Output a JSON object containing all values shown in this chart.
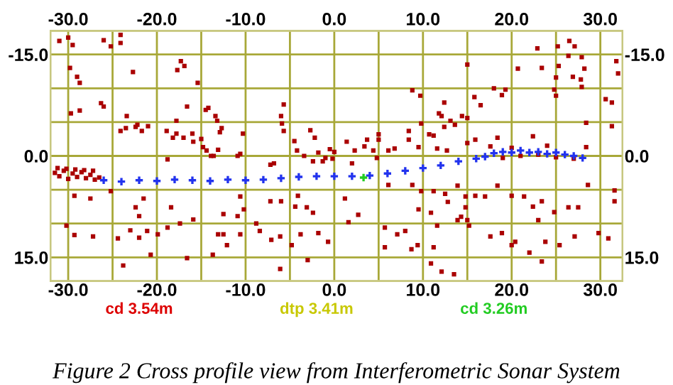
{
  "chart_data": {
    "type": "scatter",
    "xlim": [
      -32,
      32.5
    ],
    "ylim": [
      18.5,
      -18.5
    ],
    "x2lim": [
      -32,
      32.5
    ],
    "y2lim": [
      18.5,
      -18.5
    ],
    "xticks": [
      {
        "value": -30,
        "label": "-30.0"
      },
      {
        "value": -25,
        "label": null
      },
      {
        "value": -20,
        "label": "-20.0"
      },
      {
        "value": -15,
        "label": null
      },
      {
        "value": -10,
        "label": "-10.0"
      },
      {
        "value": -5,
        "label": null
      },
      {
        "value": 0,
        "label": "0.0"
      },
      {
        "value": 5,
        "label": null
      },
      {
        "value": 10,
        "label": "10.0"
      },
      {
        "value": 15,
        "label": null
      },
      {
        "value": 20,
        "label": "20.0"
      },
      {
        "value": 25,
        "label": null
      },
      {
        "value": 30,
        "label": "30.0"
      }
    ],
    "x2ticks": [
      {
        "value": -30,
        "label": "-30.0"
      },
      {
        "value": -25,
        "label": null
      },
      {
        "value": -20,
        "label": "-20.0"
      },
      {
        "value": -15,
        "label": null
      },
      {
        "value": -10,
        "label": "-10.0"
      },
      {
        "value": -5,
        "label": null
      },
      {
        "value": 0,
        "label": "0.0"
      },
      {
        "value": 5,
        "label": null
      },
      {
        "value": 10,
        "label": "10.0"
      },
      {
        "value": 15,
        "label": null
      },
      {
        "value": 20,
        "label": "20.0"
      },
      {
        "value": 25,
        "label": null
      },
      {
        "value": 30,
        "label": "30.0"
      }
    ],
    "yticks": [
      {
        "value": -15,
        "label": "-15.0"
      },
      {
        "value": -10,
        "label": null
      },
      {
        "value": -5,
        "label": null
      },
      {
        "value": 0,
        "label": "0.0"
      },
      {
        "value": 5,
        "label": null
      },
      {
        "value": 10,
        "label": null
      },
      {
        "value": 15,
        "label": "15.0"
      }
    ],
    "y2ticks": [
      {
        "value": -15,
        "label": "-15.0"
      },
      {
        "value": -10,
        "label": null
      },
      {
        "value": -5,
        "label": null
      },
      {
        "value": 0,
        "label": "0.0"
      },
      {
        "value": 5,
        "label": null
      },
      {
        "value": 10,
        "label": null
      },
      {
        "value": 15,
        "label": "15.0"
      }
    ],
    "grid": true,
    "annotations": [
      "cd 3.54m",
      "dtp 3.41m",
      "cd 3.26m",
      "Figure 2 Cross profile view from Interferometric Sonar System"
    ],
    "series": [
      {
        "color": "#aa0000",
        "marker": "square",
        "x": [
          -22.7,
          -17.3,
          -16.9,
          -17.7,
          -15.4,
          -29.8,
          -29.0,
          -28.7,
          -29.7,
          -28.7,
          -26.3,
          -26.0,
          -23.4,
          -16.6,
          -14.5,
          -14.2,
          -13.4,
          -13.2,
          -17.8,
          -24.1,
          -23.5,
          -22.4,
          -22.2,
          -21.7,
          -21.0,
          -18.9,
          -18.2,
          -17.8,
          -17.0,
          -16.0,
          -15.9,
          -15.0,
          -14.8,
          -14.4,
          -13.1,
          -13.6,
          -12.7,
          -12.9,
          -10.3,
          -10.6,
          -5.7,
          -6.0,
          -5.9,
          -5.7,
          -4.5,
          -2.7,
          -2.2,
          -4.2,
          -3.4,
          -25.2,
          -26.0,
          -24.1,
          -24.1,
          15.0,
          8.8,
          9.7,
          12.4,
          11.8,
          12.1,
          13.1,
          13.6,
          9.8,
          12.4,
          14.4,
          15.0,
          15.8,
          16.5,
          18.0,
          19.3,
          18.9,
          20.7,
          22.9,
          23.4,
          25.2,
          25.3,
          25.0,
          24.8,
          25.0,
          26.5,
          26.4,
          27.1,
          27.9,
          28.2,
          26.9,
          27.8,
          27.9,
          30.6,
          31.3,
          31.8,
          32.0,
          28.4,
          31.3,
          8.4,
          10.7,
          11.2,
          8.4,
          5.0,
          5.0,
          3.7,
          3.4,
          4.4,
          1.4,
          2.3,
          6.1,
          6.8,
          9.5,
          11.6,
          12.7,
          15.0,
          15.9,
          17.6,
          18.4,
          22.4,
          28.4,
          -29.3,
          -27.5,
          -25.2,
          -21.5,
          -22.4,
          -22.0,
          -18.4,
          -15.9,
          -12.5,
          -10.6,
          -10.2,
          -10.9,
          -8.8,
          -7.2,
          -6.0,
          -4.1,
          -4.4,
          -3.1,
          -2.4,
          -23.0,
          -22.0,
          -21.1,
          -19.9,
          -18.8,
          -17.4,
          -24.4,
          -27.2,
          -29.3,
          -30.2,
          -13.1,
          -12.5,
          -12.1,
          -10.6,
          -8.4,
          -7.1,
          -6.1,
          -4.8,
          -3.8,
          -1.8,
          -0.7,
          -20.7,
          -16.6,
          -13.7,
          -18.8,
          -13.9,
          -10.9,
          -7.2,
          -6.8,
          -2.4,
          -23.8,
          -3.0,
          -6.1,
          4.8,
          2.0,
          6.1,
          8.8,
          9.8,
          11.2,
          12.5,
          13.9,
          12.8,
          14.8,
          15.9,
          17.0,
          18.4,
          20.0,
          21.4,
          22.4,
          23.4,
          24.8,
          26.4,
          27.5,
          28.6,
          31.6,
          31.6,
          1.2,
          2.7,
          5.7,
          7.1,
          8.0,
          9.5,
          10.9,
          11.6,
          14.8,
          14.3,
          15.0,
          13.9,
          15.2,
          17.6,
          18.9,
          20.0,
          20.4,
          22.0,
          23.8,
          25.4,
          27.1,
          29.8,
          30.9,
          23.0,
          9.4,
          8.7,
          11.2,
          10.9,
          12.1,
          13.5,
          23.4,
          5.7,
          1.6,
          -31.5,
          -31.0,
          -30.5,
          -30.0,
          -29.5,
          -29.0,
          -28.5,
          -28.0,
          -27.5,
          -27.0,
          -26.5,
          -31.2,
          -30.2,
          -29.2,
          -28.2,
          -27.2,
          -1.8,
          -1.0,
          -0.5,
          0.0,
          -1.3,
          -0.2,
          19.0,
          21.0,
          23.0,
          25.0,
          27.0,
          20.0,
          24.0,
          -30.0,
          -29.5,
          -31.0
        ],
        "values": [
          -12.4,
          -14.0,
          -13.3,
          -12.7,
          -10.8,
          -13.0,
          -11.7,
          -10.8,
          -6.3,
          -6.7,
          -7.8,
          -7.3,
          -5.9,
          -7.3,
          -6.8,
          -7.1,
          -5.9,
          -5.2,
          -5.2,
          -3.7,
          -4.1,
          -4.3,
          -4.6,
          -3.7,
          -4.4,
          -3.7,
          -2.7,
          -3.3,
          -2.7,
          -3.3,
          -2.1,
          -2.5,
          -1.3,
          -0.8,
          -0.9,
          0.0,
          -4.1,
          -3.5,
          -3.3,
          -0.3,
          -7.6,
          -5.9,
          -4.8,
          -3.7,
          -2.2,
          -3.8,
          -2.7,
          -0.8,
          0.0,
          -16.2,
          -17.1,
          -16.7,
          -17.9,
          -13.5,
          -9.7,
          -8.9,
          -7.9,
          -6.3,
          -5.9,
          -5.2,
          -4.6,
          -4.8,
          -4.3,
          -5.9,
          -5.6,
          -8.7,
          -7.5,
          -10.0,
          -9.8,
          -9.0,
          -12.9,
          -15.9,
          -13.0,
          -16.2,
          -13.3,
          -11.6,
          -9.8,
          -8.9,
          -17.0,
          -14.8,
          -16.2,
          -14.6,
          -12.9,
          -11.7,
          -11.3,
          -10.2,
          -8.4,
          -7.9,
          -14.0,
          -12.2,
          -4.9,
          -4.4,
          -3.7,
          -3.2,
          -3.0,
          -2.4,
          -3.2,
          -2.4,
          -2.4,
          -1.4,
          -0.8,
          -2.1,
          -0.8,
          -0.8,
          -1.1,
          -1.3,
          -1.1,
          -0.8,
          -1.9,
          -2.4,
          -1.4,
          -2.7,
          -2.9,
          -1.3,
          5.9,
          6.3,
          5.2,
          6.3,
          7.6,
          8.9,
          7.6,
          9.4,
          8.6,
          6.0,
          7.9,
          8.9,
          10.0,
          6.7,
          6.7,
          5.9,
          7.5,
          7.6,
          8.4,
          11.0,
          12.1,
          11.1,
          11.6,
          10.6,
          10.0,
          12.2,
          11.9,
          11.7,
          10.3,
          11.6,
          11.6,
          13.2,
          11.6,
          11.1,
          12.4,
          11.9,
          13.2,
          11.6,
          11.4,
          12.7,
          14.6,
          15.1,
          14.6,
          0.5,
          0.0,
          0.0,
          1.3,
          1.1,
          0.8,
          16.2,
          15.4,
          16.7,
          0.3,
          1.1,
          4.3,
          4.3,
          5.2,
          5.2,
          5.6,
          4.4,
          6.8,
          6.0,
          5.9,
          6.0,
          4.4,
          5.9,
          6.0,
          7.5,
          6.7,
          8.3,
          7.6,
          7.6,
          4.3,
          6.7,
          5.1,
          6.3,
          8.7,
          10.6,
          11.6,
          11.1,
          7.9,
          8.4,
          10.3,
          7.6,
          9.0,
          9.5,
          9.5,
          10.3,
          11.9,
          11.4,
          13.2,
          12.7,
          14.3,
          12.7,
          13.2,
          11.9,
          11.4,
          12.2,
          9.5,
          13.2,
          13.8,
          13.5,
          15.9,
          17.1,
          17.5,
          15.6,
          13.5,
          9.8,
          2.5,
          3.0,
          2.2,
          3.4,
          2.6,
          3.1,
          2.4,
          3.3,
          2.8,
          3.5,
          3.2,
          1.8,
          1.9,
          2.0,
          2.1,
          2.2,
          -0.5,
          0.3,
          -1.0,
          -0.6,
          0.8,
          0.4,
          0.3,
          0.0,
          -0.2,
          0.2,
          0.4,
          -1.2,
          -1.5,
          -17.5,
          -16.4,
          -17.0
        ]
      },
      {
        "color": "#2233ee",
        "marker": "cross",
        "x": [
          -26,
          -24,
          -22,
          -20,
          -18,
          -16,
          -14,
          -12,
          -10,
          -8,
          -6,
          -4,
          -2,
          0,
          2,
          4,
          6,
          8,
          10,
          12,
          14,
          16,
          17,
          18,
          19,
          20,
          21,
          22,
          23,
          24,
          25,
          26,
          27,
          28
        ],
        "values": [
          3.6,
          3.8,
          3.6,
          3.7,
          3.5,
          3.6,
          3.7,
          3.5,
          3.6,
          3.5,
          3.3,
          3.1,
          3.0,
          3.0,
          3.0,
          2.9,
          2.6,
          2.2,
          1.8,
          1.4,
          0.8,
          0.4,
          0.1,
          -0.4,
          -0.6,
          -0.5,
          -0.8,
          -0.5,
          -0.6,
          -0.3,
          -0.5,
          -0.2,
          0.0,
          0.3
        ]
      },
      {
        "color": "#22cc22",
        "marker": "cross",
        "x": [
          3.3
        ],
        "values": [
          3.2
        ]
      }
    ]
  }
}
